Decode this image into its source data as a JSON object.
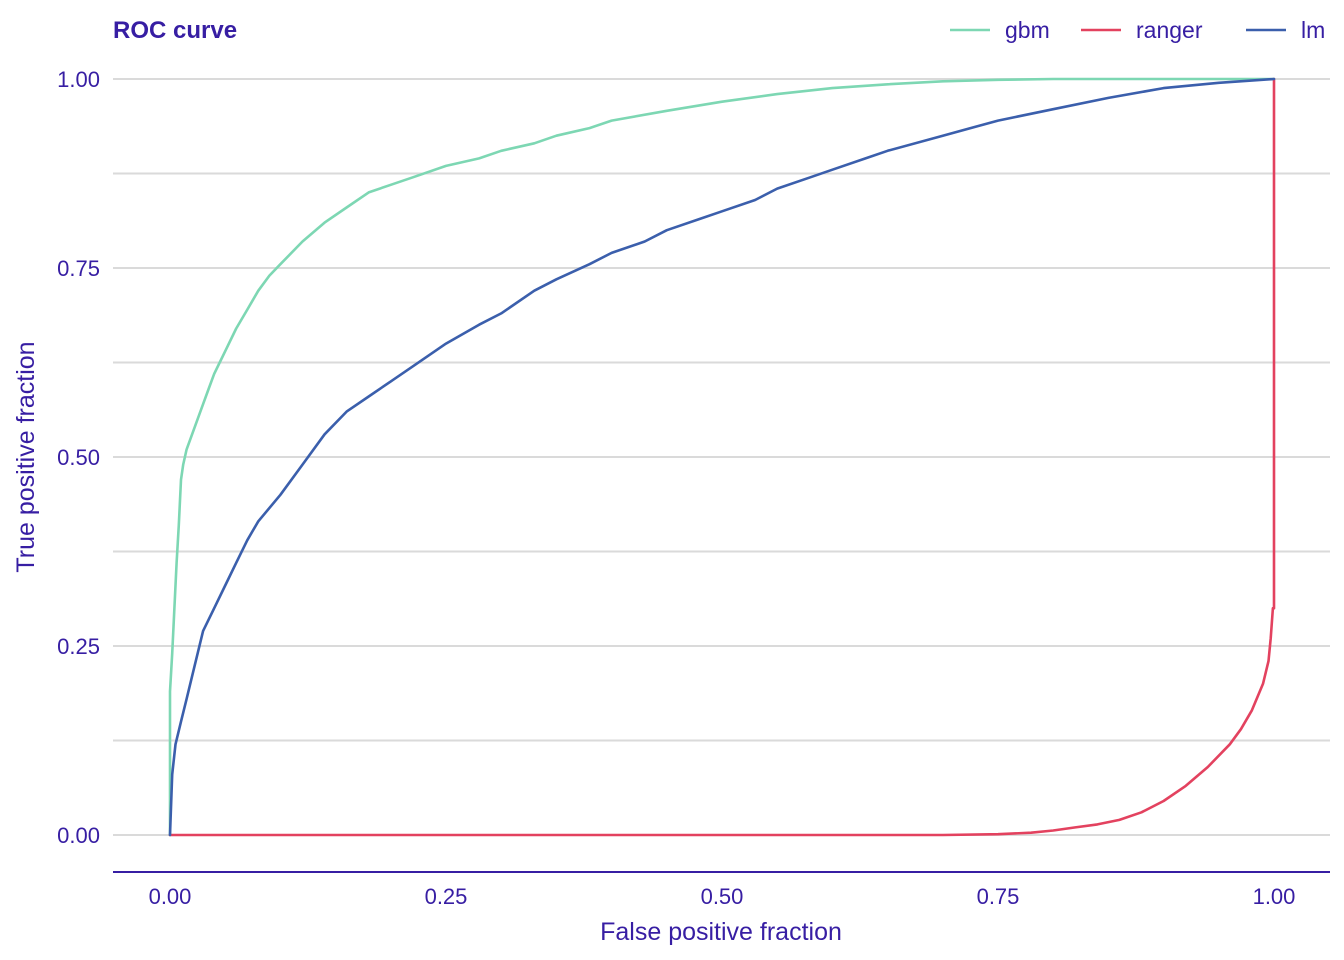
{
  "colors": {
    "text": "#371EA3",
    "grid": "#DADADA",
    "axis": "#371EA3",
    "gbm": "#7DD7B3",
    "ranger": "#E3425F",
    "lm": "#3B5FAC"
  },
  "chart_data": {
    "type": "line",
    "title": "ROC curve",
    "xlabel": "False positive fraction",
    "ylabel": "True positive fraction",
    "xlim": [
      0,
      1
    ],
    "ylim": [
      0,
      1
    ],
    "xticks": [
      "0.00",
      "0.25",
      "0.50",
      "0.75",
      "1.00"
    ],
    "yticks": [
      "0.00",
      "0.25",
      "0.50",
      "0.75",
      "1.00"
    ],
    "grid": "horizontal",
    "legend_position": "top-right",
    "series": [
      {
        "name": "gbm",
        "color": "#7DD7B3",
        "x": [
          0,
          0,
          0.002,
          0.004,
          0.006,
          0.008,
          0.01,
          0.012,
          0.015,
          0.02,
          0.025,
          0.03,
          0.035,
          0.04,
          0.045,
          0.05,
          0.06,
          0.07,
          0.08,
          0.09,
          0.1,
          0.12,
          0.14,
          0.16,
          0.18,
          0.2,
          0.22,
          0.25,
          0.28,
          0.3,
          0.33,
          0.35,
          0.38,
          0.4,
          0.45,
          0.5,
          0.55,
          0.6,
          0.65,
          0.7,
          0.75,
          0.8,
          0.9,
          1.0
        ],
        "y": [
          0,
          0.19,
          0.24,
          0.3,
          0.36,
          0.41,
          0.47,
          0.49,
          0.51,
          0.53,
          0.55,
          0.57,
          0.59,
          0.61,
          0.625,
          0.64,
          0.67,
          0.695,
          0.72,
          0.74,
          0.755,
          0.785,
          0.81,
          0.83,
          0.85,
          0.86,
          0.87,
          0.885,
          0.895,
          0.905,
          0.915,
          0.925,
          0.935,
          0.945,
          0.958,
          0.97,
          0.98,
          0.988,
          0.993,
          0.997,
          0.999,
          1.0,
          1.0,
          1.0
        ]
      },
      {
        "name": "ranger",
        "color": "#E3425F",
        "x": [
          0,
          0.7,
          0.75,
          0.78,
          0.8,
          0.82,
          0.84,
          0.86,
          0.88,
          0.9,
          0.92,
          0.94,
          0.96,
          0.97,
          0.98,
          0.99,
          0.995,
          0.997,
          0.999,
          1.0,
          1.0
        ],
        "y": [
          0,
          0,
          0.001,
          0.003,
          0.006,
          0.01,
          0.014,
          0.02,
          0.03,
          0.045,
          0.065,
          0.09,
          0.12,
          0.14,
          0.165,
          0.2,
          0.23,
          0.26,
          0.3,
          0.3,
          1.0
        ]
      },
      {
        "name": "lm",
        "color": "#3B5FAC",
        "x": [
          0,
          0.002,
          0.005,
          0.01,
          0.015,
          0.02,
          0.025,
          0.03,
          0.04,
          0.05,
          0.06,
          0.07,
          0.08,
          0.1,
          0.12,
          0.14,
          0.16,
          0.18,
          0.2,
          0.22,
          0.25,
          0.28,
          0.3,
          0.33,
          0.35,
          0.38,
          0.4,
          0.43,
          0.45,
          0.48,
          0.5,
          0.53,
          0.55,
          0.58,
          0.6,
          0.63,
          0.65,
          0.7,
          0.75,
          0.8,
          0.85,
          0.9,
          0.95,
          1.0
        ],
        "y": [
          0,
          0.08,
          0.12,
          0.15,
          0.18,
          0.21,
          0.24,
          0.27,
          0.3,
          0.33,
          0.36,
          0.39,
          0.415,
          0.45,
          0.49,
          0.53,
          0.56,
          0.58,
          0.6,
          0.62,
          0.65,
          0.675,
          0.69,
          0.72,
          0.735,
          0.755,
          0.77,
          0.785,
          0.8,
          0.815,
          0.825,
          0.84,
          0.855,
          0.87,
          0.88,
          0.895,
          0.905,
          0.925,
          0.945,
          0.96,
          0.975,
          0.988,
          0.995,
          1.0
        ]
      }
    ]
  }
}
